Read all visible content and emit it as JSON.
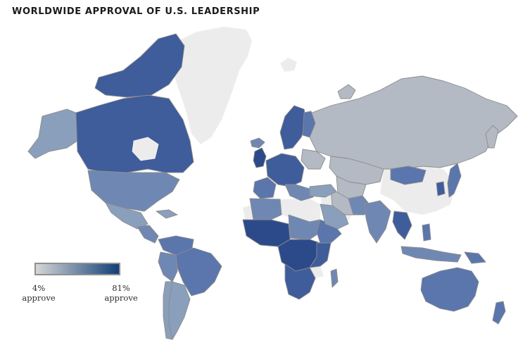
{
  "title": "WORLDWIDE APPROVAL OF U.S. LEADERSHIP",
  "legend": {
    "min_value": "4%",
    "min_label": "approve",
    "max_value": "81%",
    "max_label": "approve",
    "color_low": "#d6d6d6",
    "color_high": "#123f77"
  },
  "colors": {
    "no_data": "#ececec",
    "low": "#b3bac4",
    "mid_low": "#8a9fbb",
    "mid": "#6f88b3",
    "mid_high": "#5a76ac",
    "high": "#3f5c9b",
    "very_high": "#2c4a8a",
    "border": "#8c8c8c"
  }
}
